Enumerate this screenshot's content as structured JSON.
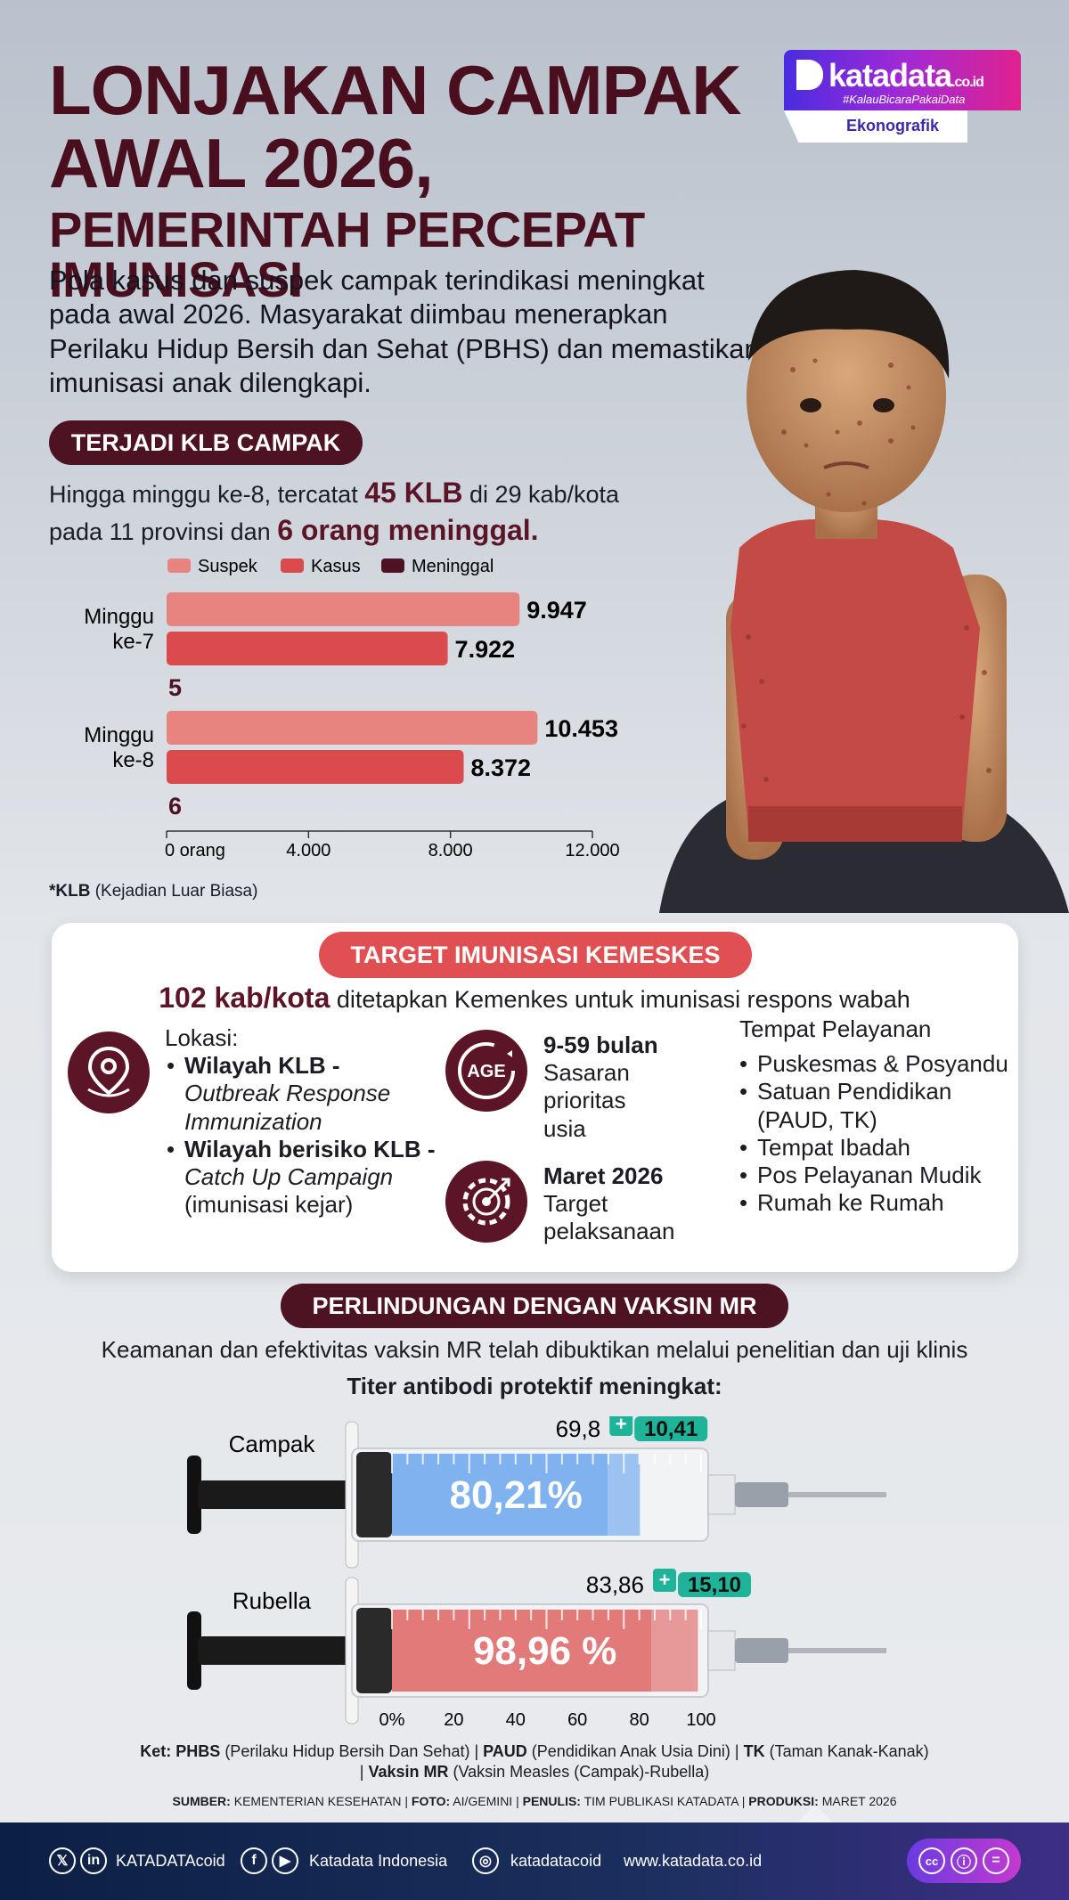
{
  "header": {
    "title_line1": "LONJAKAN CAMPAK",
    "title_line2": "AWAL 2026,",
    "title_line3": "PEMERINTAH PERCEPAT IMUNISASI",
    "intro": "Pola kasus dan suspek campak terindikasi meningkat pada awal 2026. Masyarakat diimbau menerapkan Perilaku Hidup Bersih dan Sehat (PBHS) dan memastikan imunisasi anak dilengkapi."
  },
  "logo": {
    "brand": "katadata",
    "domain": ".co.id",
    "tagline": "#KalauBicaraPakaiData",
    "label": "Ekonografik"
  },
  "klb": {
    "pill": "TERJADI KLB CAMPAK",
    "text_a": "Hingga minggu ke-8, tercatat ",
    "hl_a": "45 KLB",
    "text_b": " di 29 kab/kota pada 11 provinsi dan ",
    "hl_b": "6 orang meninggal."
  },
  "chart_data": {
    "type": "bar",
    "orientation": "horizontal",
    "categories": [
      "Minggu ke-7",
      "Minggu ke-8"
    ],
    "series": [
      {
        "name": "Suspek",
        "values": [
          9947,
          10453
        ],
        "labels": [
          "9.947",
          "10.453"
        ],
        "color": "#e8847f"
      },
      {
        "name": "Kasus",
        "values": [
          7922,
          8372
        ],
        "labels": [
          "7.922",
          "8.372"
        ],
        "color": "#db4a4c"
      },
      {
        "name": "Meninggal",
        "values": [
          5,
          6
        ],
        "labels": [
          "5",
          "6"
        ],
        "color": "#4d1322"
      }
    ],
    "xlim": [
      0,
      12000
    ],
    "xticks": [
      "0 orang",
      "4.000",
      "8.000",
      "12.000"
    ],
    "xtick_values": [
      0,
      4000,
      8000,
      12000
    ],
    "legend_position": "top",
    "grid": false
  },
  "chart_labels": {
    "cat1_line1": "Minggu",
    "cat1_line2": "ke-7",
    "cat2_line1": "Minggu",
    "cat2_line2": "ke-8"
  },
  "note": {
    "bold": "*KLB",
    "text": " (Kejadian Luar Biasa)"
  },
  "target": {
    "pill": "TARGET IMUNISASI KEMESKES",
    "kab_bold": "102 kab/kota",
    "kab_text": " ditetapkan Kemenkes untuk imunisasi respons wabah",
    "lokasi_label": "Lokasi:",
    "lokasi1_bold": "Wilayah KLB -",
    "lokasi1_italic": "Outbreak Response Immunization",
    "lokasi2_bold": "Wilayah berisiko KLB -",
    "lokasi2_italic": "Catch Up Campaign",
    "lokasi2_text": "(imunisasi kejar)",
    "age_icon_text": "AGE",
    "age_bold": "9-59 bulan",
    "age_text": "Sasaran prioritas usia",
    "date_bold": "Maret 2026",
    "date_text": "Target pelaksanaan",
    "tempat_label": "Tempat Pelayanan",
    "tempat": [
      "Puskesmas & Posyandu",
      "Satuan Pendidikan (PAUD, TK)",
      "Tempat Ibadah",
      "Pos Pelayanan Mudik",
      "Rumah ke Rumah"
    ]
  },
  "vaccine": {
    "pill": "PERLINDUNGAN DENGAN VAKSIN MR",
    "text1": "Keamanan dan efektivitas vaksin MR telah dibuktikan melalui penelitian dan uji klinis",
    "text2": "Titer antibodi protektif meningkat:",
    "campak": {
      "label": "Campak",
      "base": 69.8,
      "base_label": "69,8",
      "plus": "+",
      "increase_label": "10,41",
      "total": 80.21,
      "total_label": "80,21%",
      "color": "#7fb2ef"
    },
    "rubella": {
      "label": "Rubella",
      "base": 83.86,
      "base_label": "83,86",
      "plus": "+",
      "increase_label": "15,10",
      "total": 98.96,
      "total_label": "98,96 %",
      "color": "#e37a7a"
    },
    "axis": [
      "0%",
      "20",
      "40",
      "60",
      "80",
      "100"
    ],
    "axis_values": [
      0,
      20,
      40,
      60,
      80,
      100
    ]
  },
  "ket": {
    "line1_a_bold": "Ket: PHBS",
    "line1_a": " (Perilaku Hidup Bersih Dan Sehat) | ",
    "line1_b_bold": "PAUD",
    "line1_b": " (Pendidikan Anak Usia Dini) | ",
    "line1_c_bold": "TK",
    "line1_c": " (Taman Kanak-Kanak)",
    "line2_a": "| ",
    "line2_b_bold": "Vaksin MR",
    "line2_b": " (Vaksin Measles (Campak)-Rubella)"
  },
  "source": {
    "k1": "SUMBER:",
    "v1": " KEMENTERIAN KESEHATAN | ",
    "k2": "FOTO:",
    "v2": " AI/GEMINI  | ",
    "k3": "PENULIS:",
    "v3": " TIM PUBLIKASI KATADATA | ",
    "k4": "PRODUKSI:",
    "v4": " MARET 2026"
  },
  "footer": {
    "x_icon": "𝕏",
    "in_icon": "in",
    "handle1": "KATADATAcoid",
    "f_icon": "f",
    "yt_icon": "▶",
    "handle2": "Katadata Indonesia",
    "ig_icon": "◎",
    "handle3": "katadatacoid",
    "site": "www.katadata.co.id",
    "cc_icons": [
      "cc",
      "ⓘ",
      "="
    ]
  }
}
